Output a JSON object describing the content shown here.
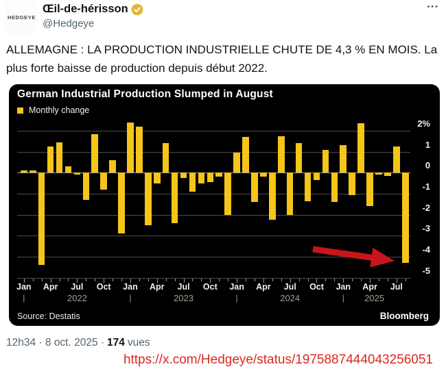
{
  "header": {
    "avatar_text": "HEDGEYE",
    "display_name": "Œil-de-hérisson",
    "handle": "@Hedgeye",
    "more_menu": "•••",
    "verified_badge_color": "#E2B63B"
  },
  "tweet": {
    "text": "ALLEMAGNE : LA PRODUCTION INDUSTRIELLE CHUTE DE 4,3 % EN MOIS. La plus forte baisse de production depuis début 2022."
  },
  "meta": {
    "time_and_date": "12h34 · 8 oct. 2025 ·",
    "views_count": "174",
    "views_label": "vues"
  },
  "link": {
    "url": "https://x.com/Hedgeye/status/1975887444043256051",
    "color": "#D9291F"
  },
  "chart_data": {
    "type": "bar",
    "title": "German Industrial Production Slumped in August",
    "legend": "Monthly change",
    "source": "Source: Destatis",
    "brand": "Bloomberg",
    "bar_color": "#F5C51A",
    "arrow_color": "#C8151B",
    "background": "#000000",
    "grid": true,
    "legend_position": "top-left",
    "ylabel": "%",
    "ylim": [
      -5,
      2.4
    ],
    "yticks": [
      2,
      1,
      0,
      -1,
      -2,
      -3,
      -4,
      -5
    ],
    "ytick_labels": [
      "2%",
      "1",
      "0",
      "-1",
      "-2",
      "-3",
      "-4",
      "-5"
    ],
    "categories": [
      "2022-01",
      "2022-02",
      "2022-03",
      "2022-04",
      "2022-05",
      "2022-06",
      "2022-07",
      "2022-08",
      "2022-09",
      "2022-10",
      "2022-11",
      "2022-12",
      "2023-01",
      "2023-02",
      "2023-03",
      "2023-04",
      "2023-05",
      "2023-06",
      "2023-07",
      "2023-08",
      "2023-09",
      "2023-10",
      "2023-11",
      "2023-12",
      "2024-01",
      "2024-02",
      "2024-03",
      "2024-04",
      "2024-05",
      "2024-06",
      "2024-07",
      "2024-08",
      "2024-09",
      "2024-10",
      "2024-11",
      "2024-12",
      "2025-01",
      "2025-02",
      "2025-03",
      "2025-04",
      "2025-05",
      "2025-06",
      "2025-07",
      "2025-08"
    ],
    "values": [
      0.1,
      0.1,
      -4.4,
      1.25,
      1.45,
      0.3,
      -0.1,
      -1.3,
      1.85,
      -0.8,
      0.6,
      -2.9,
      2.4,
      2.2,
      -2.5,
      -0.5,
      1.4,
      -2.4,
      -0.25,
      -0.9,
      -0.5,
      -0.45,
      -0.2,
      -2.0,
      0.95,
      1.7,
      -1.4,
      -0.2,
      -2.25,
      1.75,
      -2.0,
      1.4,
      -1.35,
      -0.35,
      1.1,
      -1.4,
      1.3,
      -1.05,
      2.35,
      -1.6,
      -0.1,
      -0.15,
      1.25,
      -4.3
    ],
    "xtick_labels": [
      "Jan",
      "Apr",
      "Jul",
      "Oct",
      "Jan",
      "Apr",
      "Jul",
      "Oct",
      "Jan",
      "Apr",
      "Jul",
      "Oct",
      "Jan",
      "Apr",
      "Jul"
    ],
    "year_labels": [
      "2022",
      "2023",
      "2024",
      "2025"
    ],
    "highlight": "2025-08"
  }
}
